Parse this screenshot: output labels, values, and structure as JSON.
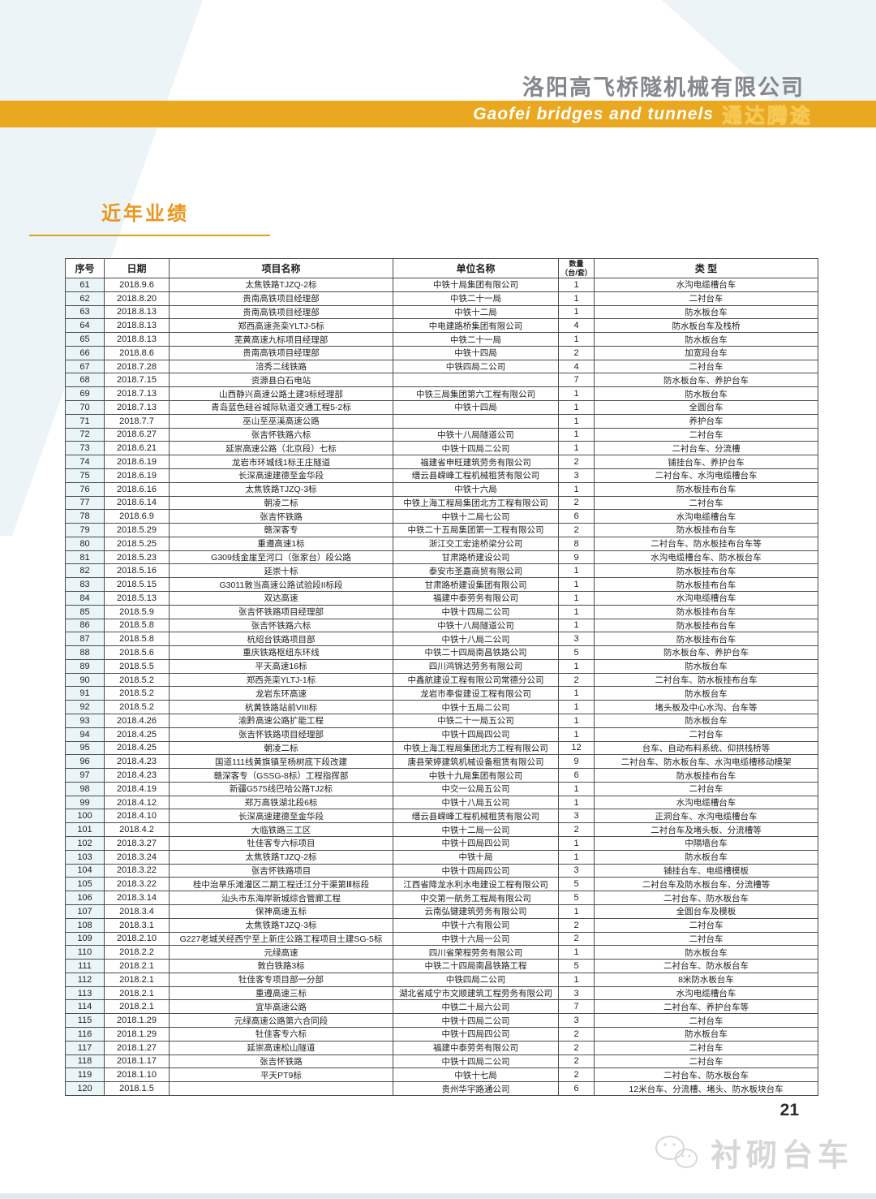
{
  "header": {
    "company_name": "洛阳高飞桥隧机械有限公司",
    "banner_en": "Gaofei bridges and tunnels",
    "banner_cn": "通达腾途",
    "banner_color": "#e9a81f"
  },
  "section": {
    "title": "近年业绩",
    "accent_color": "#e8971d"
  },
  "table": {
    "columns": [
      "序号",
      "日期",
      "项目名称",
      "单位名称",
      "数量\n（台/套）",
      "类 型"
    ],
    "rows": [
      [
        "61",
        "2018.9.6",
        "太焦铁路TJZQ-2标",
        "中铁十局集团有限公司",
        "1",
        "水沟电缆槽台车"
      ],
      [
        "62",
        "2018.8.20",
        "贵南高铁项目经理部",
        "中铁二十一局",
        "1",
        "二衬台车"
      ],
      [
        "63",
        "2018.8.13",
        "贵南高铁项目经理部",
        "中铁十二局",
        "1",
        "防水板台车"
      ],
      [
        "64",
        "2018.8.13",
        "郑西高速尧栾YLTJ-5标",
        "中电建路桥集团有限公司",
        "4",
        "防水板台车及栈桥"
      ],
      [
        "65",
        "2018.8.13",
        "芜黄高速九标项目经理部",
        "中铁二十一局",
        "1",
        "防水板台车"
      ],
      [
        "66",
        "2018.8.6",
        "贵南高铁项目经理部",
        "中铁十四局",
        "2",
        "加宽段台车"
      ],
      [
        "67",
        "2018.7.28",
        "涪秀二线铁路",
        "中铁四局二公司",
        "4",
        "二衬台车"
      ],
      [
        "68",
        "2018.7.15",
        "资源县白石电站",
        "",
        "7",
        "防水板台车、养护台车"
      ],
      [
        "69",
        "2018.7.13",
        "山西静兴高速公路土建3标经理部",
        "中铁三局集团第六工程有限公司",
        "1",
        "防水板台车"
      ],
      [
        "70",
        "2018.7.13",
        "青岛蓝色硅谷城际轨道交通工程5-2标",
        "中铁十四局",
        "1",
        "全圆台车"
      ],
      [
        "71",
        "2018.7.7",
        "巫山至巫溪高速公路",
        "",
        "1",
        "养护台车"
      ],
      [
        "72",
        "2018.6.27",
        "张吉怀铁路六标",
        "中铁十八局隧道公司",
        "1",
        "二衬台车"
      ],
      [
        "73",
        "2018.6.21",
        "延崇高速公路（北京段）七标",
        "中铁十四局二公司",
        "1",
        "二衬台车、分流槽"
      ],
      [
        "74",
        "2018.6.19",
        "龙岩市环城线1标王庄隧道",
        "福建省申旺建筑劳务有限公司",
        "2",
        "铺挂台车、养护台车"
      ],
      [
        "75",
        "2018.6.19",
        "长深高速建德至金华段",
        "缙云县嵘峰工程机械租赁有限公司",
        "3",
        "二衬台车、水沟电缆槽台车"
      ],
      [
        "76",
        "2018.6.16",
        "太焦铁路TJZQ-3标",
        "中铁十六局",
        "1",
        "防水板挂布台车"
      ],
      [
        "77",
        "2018.6.14",
        "朝凌二标",
        "中铁上海工程局集团北方工程有限公司",
        "2",
        "二衬台车"
      ],
      [
        "78",
        "2018.6.9",
        "张吉怀铁路",
        "中铁十二局七公司",
        "6",
        "水沟电缆槽台车"
      ],
      [
        "79",
        "2018.5.29",
        "赣深客专",
        "中铁二十五局集团第一工程有限公司",
        "2",
        "防水板挂布台车"
      ],
      [
        "80",
        "2018.5.25",
        "重遵高速1标",
        "浙江交工宏途桥梁分公司",
        "8",
        "二衬台车、防水板挂布台车等"
      ],
      [
        "81",
        "2018.5.23",
        "G309线金崖至河口（张家台）段公路",
        "甘肃路桥建设公司",
        "9",
        "水沟电缆槽台车、防水板台车"
      ],
      [
        "82",
        "2018.5.16",
        "延崇十标",
        "泰安市圣嘉商贸有限公司",
        "1",
        "防水板挂布台车"
      ],
      [
        "83",
        "2018.5.15",
        "G3011敦当高速公路试验段II标段",
        "甘肃路桥建设集团有限公司",
        "1",
        "防水板挂布台车"
      ],
      [
        "84",
        "2018.5.13",
        "双达高速",
        "福建中泰劳务有限公司",
        "1",
        "水沟电缆槽台车"
      ],
      [
        "85",
        "2018.5.9",
        "张吉怀铁路项目经理部",
        "中铁十四局二公司",
        "1",
        "防水板挂布台车"
      ],
      [
        "86",
        "2018.5.8",
        "张吉怀铁路六标",
        "中铁十八局隧道公司",
        "1",
        "防水板挂布台车"
      ],
      [
        "87",
        "2018.5.8",
        "杭绍台铁路项目部",
        "中铁十八局二公司",
        "3",
        "防水板挂布台车"
      ],
      [
        "88",
        "2018.5.6",
        "重庆铁路枢纽东环线",
        "中铁二十四局南昌铁路公司",
        "5",
        "防水板台车、养护台车"
      ],
      [
        "89",
        "2018.5.5",
        "平天高速16标",
        "四川鸿锦达劳务有限公司",
        "1",
        "防水板台车"
      ],
      [
        "90",
        "2018.5.2",
        "郑西尧栾YLTJ-1标",
        "中鑫航建设工程有限公司常德分公司",
        "2",
        "二衬台车、防水板挂布台车"
      ],
      [
        "91",
        "2018.5.2",
        "龙岩东环高速",
        "龙岩市奉俊建设工程有限公司",
        "1",
        "防水板台车"
      ],
      [
        "92",
        "2018.5.2",
        "杭黄铁路站前VIII标",
        "中铁十五局二公司",
        "1",
        "堵头板及中心水沟、台车等"
      ],
      [
        "93",
        "2018.4.26",
        "渝黔高速公路扩能工程",
        "中铁二十一局五公司",
        "1",
        "防水板台车"
      ],
      [
        "94",
        "2018.4.25",
        "张吉怀铁路项目经理部",
        "中铁十四局四公司",
        "1",
        "二衬台车"
      ],
      [
        "95",
        "2018.4.25",
        "朝凌二标",
        "中铁上海工程局集团北方工程有限公司",
        "12",
        "台车、自动布料系统、仰拱栈桥等"
      ],
      [
        "96",
        "2018.4.23",
        "国道111线黄旗镇至杨树底下段改建",
        "唐县荣婷建筑机械设备租赁有限公司",
        "9",
        "二衬台车、防水板台车、水沟电缆槽移动模架"
      ],
      [
        "97",
        "2018.4.23",
        "赣深客专（GSSG-8标）工程指挥部",
        "中铁十九局集团有限公司",
        "6",
        "防水板挂布台车"
      ],
      [
        "98",
        "2018.4.19",
        "新疆G575线巴哈公路TJ2标",
        "中交一公局五公司",
        "1",
        "二衬台车"
      ],
      [
        "99",
        "2018.4.12",
        "郑万高铁湖北段6标",
        "中铁十八局五公司",
        "1",
        "水沟电缆槽台车"
      ],
      [
        "100",
        "2018.4.10",
        "长深高速建德至金华段",
        "缙云县嵘峰工程机械租赁有限公司",
        "3",
        "正洞台车、水沟电缆槽台车"
      ],
      [
        "101",
        "2018.4.2",
        "大临铁路三工区",
        "中铁十二局一公司",
        "2",
        "二衬台车及堵头板、分流槽等"
      ],
      [
        "102",
        "2018.3.27",
        "牡佳客专六标项目",
        "中铁十四局四公司",
        "1",
        "中隔墙台车"
      ],
      [
        "103",
        "2018.3.24",
        "太焦铁路TJZQ-2标",
        "中铁十局",
        "1",
        "防水板台车"
      ],
      [
        "104",
        "2018.3.22",
        "张吉怀铁路项目",
        "中铁十四局四公司",
        "3",
        "铺挂台车、电缆槽模板"
      ],
      [
        "105",
        "2018.3.22",
        "桂中治旱乐滩灌区二期工程迁江分干渠第Ⅲ标段",
        "江西省降龙水利水电建设工程有限公司",
        "5",
        "二衬台车及防水板台车、分流槽等"
      ],
      [
        "106",
        "2018.3.14",
        "汕头市东海岸新城综合管廊工程",
        "中交第一航务工程局有限公司",
        "5",
        "二衬台车、防水板台车"
      ],
      [
        "107",
        "2018.3.4",
        "保神高速五标",
        "云南弘键建筑劳务有限公司",
        "1",
        "全圆台车及模板"
      ],
      [
        "108",
        "2018.3.1",
        "太焦铁路TJZQ-3标",
        "中铁十六有限公司",
        "2",
        "二衬台车"
      ],
      [
        "109",
        "2018.2.10",
        "G227老城关经西宁至上新庄公路工程项目土建SG-5标",
        "中铁十六局一公司",
        "2",
        "二衬台车"
      ],
      [
        "110",
        "2018.2.2",
        "元绿高速",
        "四川省荣程劳务有限公司",
        "1",
        "防水板台车"
      ],
      [
        "111",
        "2018.2.1",
        "敦白铁路3标",
        "中铁二十四局南昌铁路工程",
        "5",
        "二衬台车、防水板台车"
      ],
      [
        "112",
        "2018.2.1",
        "牡佳客专项目部一分部",
        "中铁四局二公司",
        "1",
        "8米防水板台车"
      ],
      [
        "113",
        "2018.2.1",
        "重遵高速三标",
        "湖北省咸宁市文顺建筑工程劳务有限公司",
        "3",
        "水沟电缆槽台车"
      ],
      [
        "114",
        "2018.2.1",
        "宜毕高速公路",
        "中铁二十局六公司",
        "7",
        "二衬台车、养护台车等"
      ],
      [
        "115",
        "2018.1.29",
        "元绿高速公路第六合同段",
        "中铁十四局二公司",
        "3",
        "二衬台车"
      ],
      [
        "116",
        "2018.1.29",
        "牡佳客专六标",
        "中铁十四局四公司",
        "2",
        "防水板台车"
      ],
      [
        "117",
        "2018.1.27",
        "延崇高速松山隧道",
        "福建中泰劳务有限公司",
        "2",
        "二衬台车"
      ],
      [
        "118",
        "2018.1.17",
        "张吉怀铁路",
        "中铁十四局二公司",
        "2",
        "二衬台车"
      ],
      [
        "119",
        "2018.1.10",
        "平天PT9标",
        "中铁十七局",
        "2",
        "二衬台车、防水板台车"
      ],
      [
        "120",
        "2018.1.5",
        "",
        "贵州华宇路通公司",
        "6",
        "12米台车、分流槽、堵头、防水板块台车"
      ]
    ]
  },
  "footer": {
    "page_number": "21",
    "watermark": "衬砌台车"
  }
}
